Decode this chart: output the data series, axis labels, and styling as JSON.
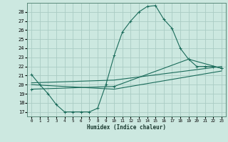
{
  "xlabel": "Humidex (Indice chaleur)",
  "background_color": "#cce8e0",
  "grid_color": "#aaccc4",
  "line_color": "#1a6b5a",
  "xlim": [
    -0.5,
    23.5
  ],
  "ylim": [
    16.5,
    29.0
  ],
  "xticks": [
    0,
    1,
    2,
    3,
    4,
    5,
    6,
    7,
    8,
    9,
    10,
    11,
    12,
    13,
    14,
    15,
    16,
    17,
    18,
    19,
    20,
    21,
    22,
    23
  ],
  "yticks": [
    17,
    18,
    19,
    20,
    21,
    22,
    23,
    24,
    25,
    26,
    27,
    28
  ],
  "line1_x": [
    0,
    1,
    2,
    3,
    4,
    5,
    6,
    7,
    8,
    9,
    10,
    11,
    12,
    13,
    14,
    15,
    16,
    17,
    18,
    19,
    20,
    21,
    22,
    23
  ],
  "line1_y": [
    21.1,
    20.0,
    19.0,
    17.8,
    17.0,
    17.0,
    17.0,
    17.0,
    17.4,
    20.0,
    23.2,
    25.8,
    27.0,
    28.0,
    28.6,
    28.7,
    27.2,
    26.2,
    24.0,
    22.8,
    22.0,
    22.0,
    22.0,
    21.8
  ],
  "line2_x": [
    0,
    10,
    23
  ],
  "line2_y": [
    20.2,
    20.5,
    22.0
  ],
  "line3_x": [
    0,
    10,
    19,
    23
  ],
  "line3_y": [
    19.5,
    19.8,
    22.8,
    21.8
  ],
  "line4_x": [
    0,
    10,
    23
  ],
  "line4_y": [
    20.0,
    19.5,
    21.5
  ]
}
